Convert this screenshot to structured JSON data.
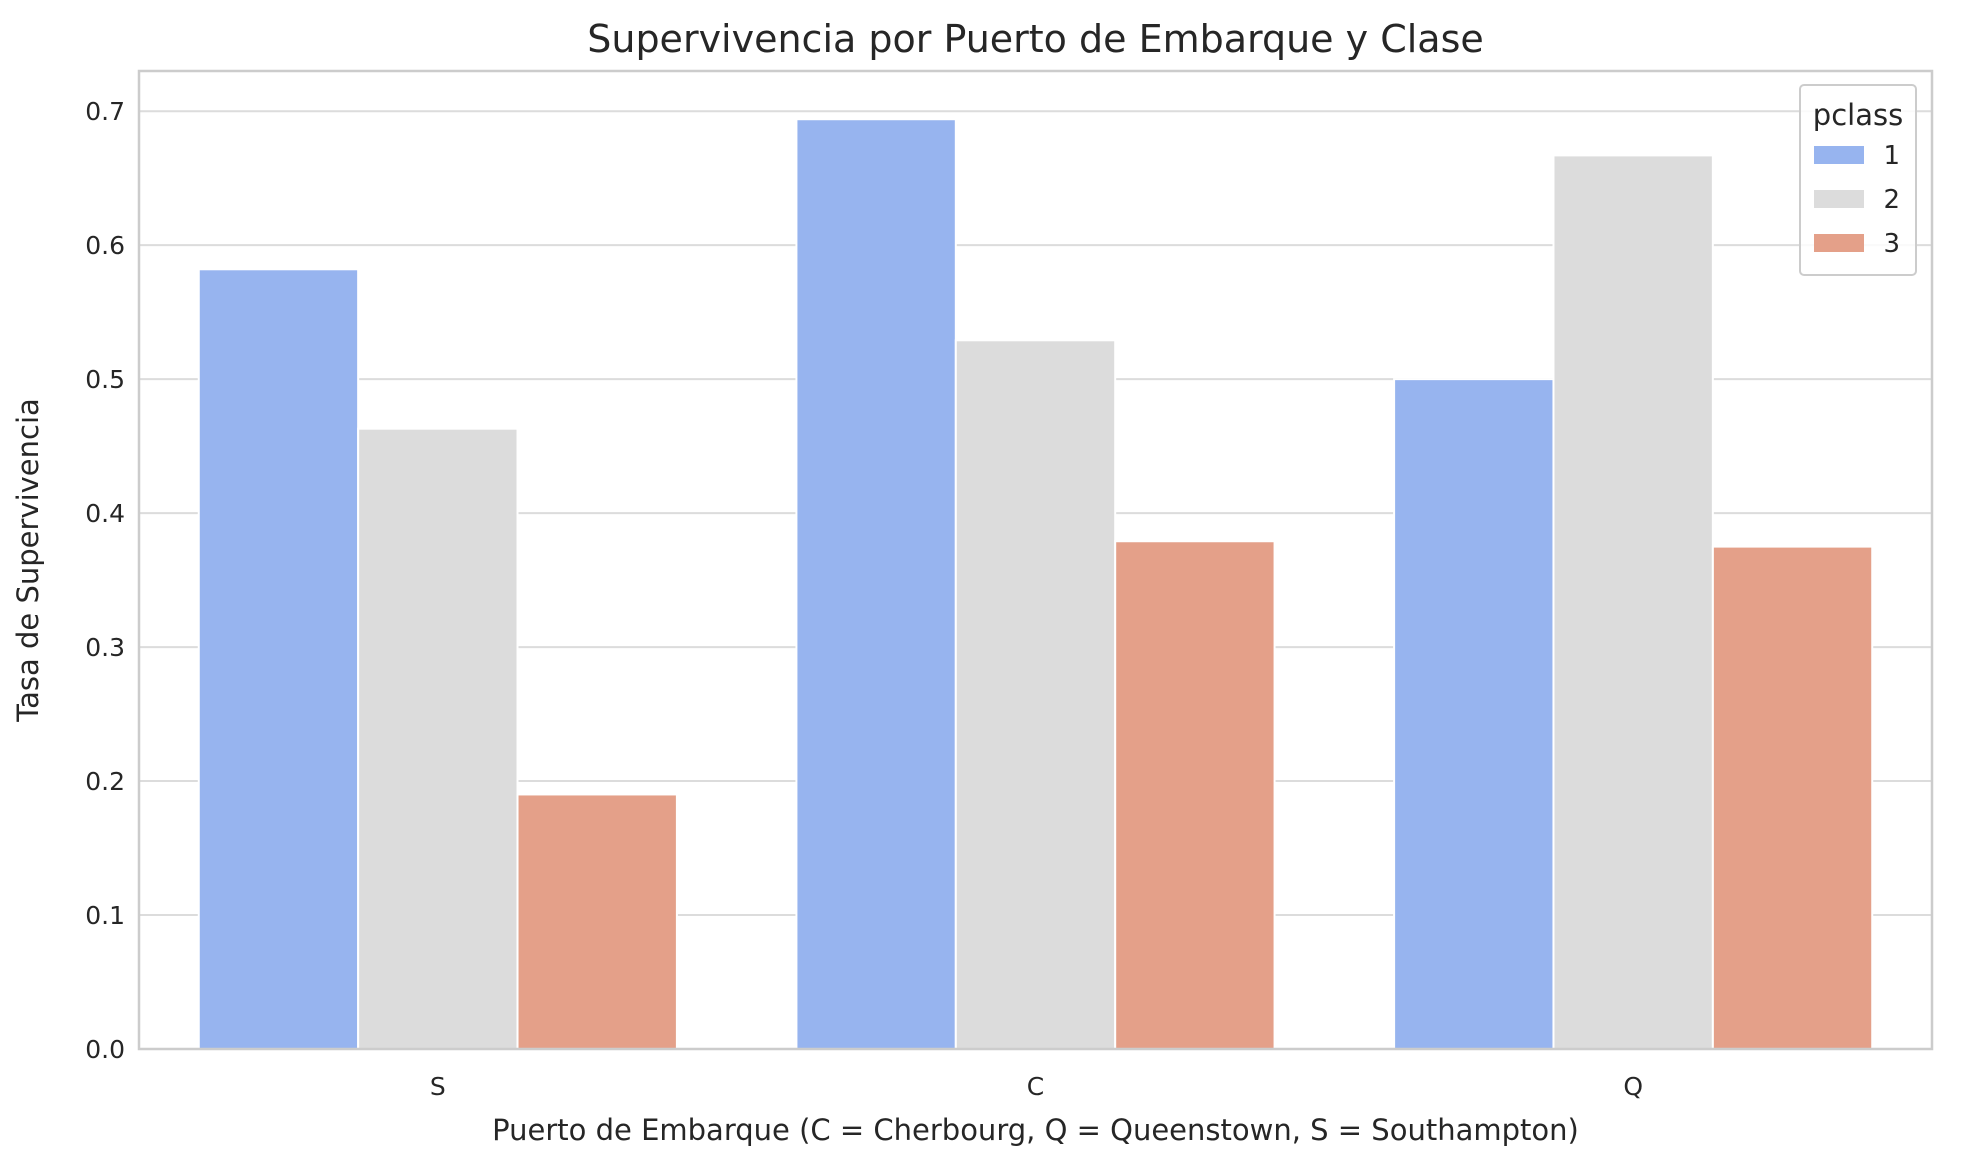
{
  "chart_data": {
    "type": "bar",
    "title": "Supervivencia por Puerto de Embarque y Clase",
    "xlabel": "Puerto de Embarque (C = Cherbourg, Q = Queenstown, S = Southampton)",
    "ylabel": "Tasa de Supervivencia",
    "categories": [
      "S",
      "C",
      "Q"
    ],
    "ylim": [
      0,
      0.73
    ],
    "yticks": [
      "0.0",
      "0.1",
      "0.2",
      "0.3",
      "0.4",
      "0.5",
      "0.6",
      "0.7"
    ],
    "grid": true,
    "legend": {
      "title": "pclass",
      "placement": "top-right"
    },
    "series": [
      {
        "name": "1",
        "color": "#97b4ef",
        "values": [
          0.582,
          0.694,
          0.5
        ]
      },
      {
        "name": "2",
        "color": "#dcdcdc",
        "values": [
          0.463,
          0.529,
          0.667
        ]
      },
      {
        "name": "3",
        "color": "#e4a089",
        "values": [
          0.19,
          0.379,
          0.375
        ]
      }
    ]
  }
}
